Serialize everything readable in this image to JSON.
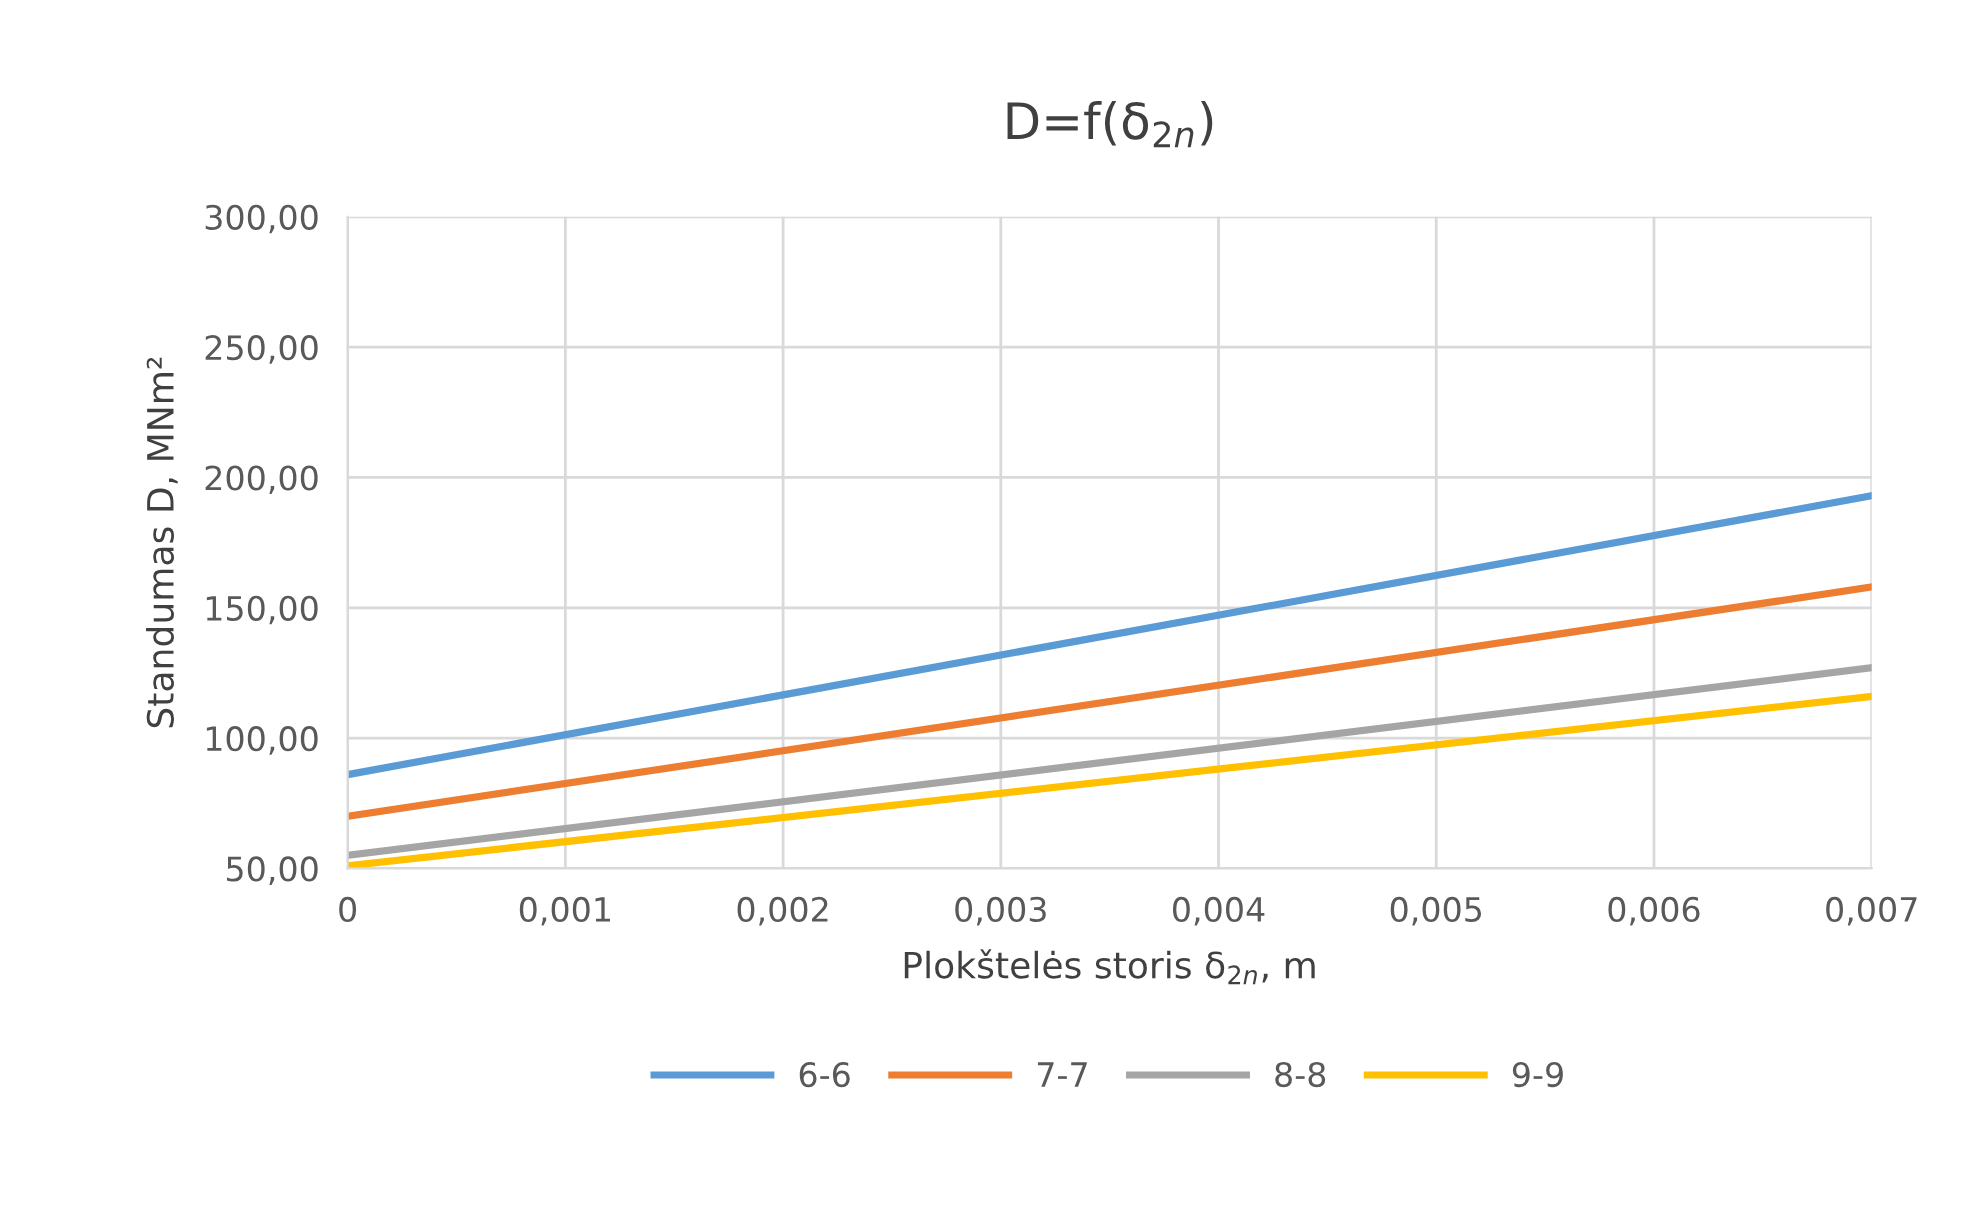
{
  "chart_data": {
    "type": "line",
    "title": "D=f(δ$_{2n}$)",
    "xlabel": "Plokštelės storis δ$_{2n}$, m",
    "ylabel": "Standumas D, MNm²",
    "x": [
      0,
      0.007
    ],
    "series": [
      {
        "name": "6-6",
        "color": "#5b9bd5",
        "values": [
          86,
          193
        ]
      },
      {
        "name": "7-7",
        "color": "#ed7d31",
        "values": [
          70,
          158
        ]
      },
      {
        "name": "8-8",
        "color": "#a5a5a5",
        "values": [
          55,
          127
        ]
      },
      {
        "name": "9-9",
        "color": "#ffc000",
        "values": [
          51,
          116
        ]
      }
    ],
    "xlim": [
      0,
      0.007
    ],
    "xticks": [
      {
        "value": 0,
        "label": "0"
      },
      {
        "value": 0.001,
        "label": "0,001"
      },
      {
        "value": 0.002,
        "label": "0,002"
      },
      {
        "value": 0.003,
        "label": "0,003"
      },
      {
        "value": 0.004,
        "label": "0,004"
      },
      {
        "value": 0.005,
        "label": "0,005"
      },
      {
        "value": 0.006,
        "label": "0,006"
      },
      {
        "value": 0.007,
        "label": "0,007"
      }
    ],
    "ylim": [
      50,
      300
    ],
    "yticks": [
      {
        "value": 50,
        "label": "50,00"
      },
      {
        "value": 100,
        "label": "100,00"
      },
      {
        "value": 150,
        "label": "150,00"
      },
      {
        "value": 200,
        "label": "200,00"
      },
      {
        "value": 250,
        "label": "250,00"
      },
      {
        "value": 300,
        "label": "300,00"
      }
    ],
    "grid": true,
    "legend": "bottom",
    "marker": "none",
    "line_style": "solid"
  }
}
